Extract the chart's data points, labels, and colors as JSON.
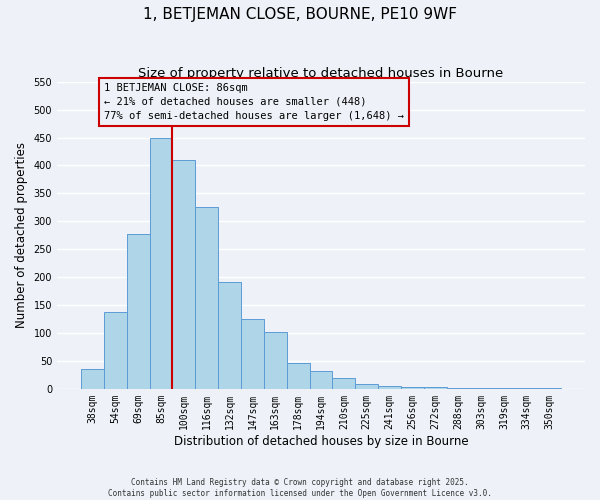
{
  "title": "1, BETJEMAN CLOSE, BOURNE, PE10 9WF",
  "subtitle": "Size of property relative to detached houses in Bourne",
  "xlabel": "Distribution of detached houses by size in Bourne",
  "ylabel": "Number of detached properties",
  "bar_labels": [
    "38sqm",
    "54sqm",
    "69sqm",
    "85sqm",
    "100sqm",
    "116sqm",
    "132sqm",
    "147sqm",
    "163sqm",
    "178sqm",
    "194sqm",
    "210sqm",
    "225sqm",
    "241sqm",
    "256sqm",
    "272sqm",
    "288sqm",
    "303sqm",
    "319sqm",
    "334sqm",
    "350sqm"
  ],
  "bar_values": [
    35,
    137,
    278,
    450,
    410,
    325,
    192,
    125,
    101,
    46,
    32,
    20,
    8,
    5,
    4,
    3,
    2,
    2,
    1,
    1,
    2
  ],
  "bar_color": "#aed6e8",
  "bar_edge_color": "#5b9bd5",
  "annotation_text_line1": "1 BETJEMAN CLOSE: 86sqm",
  "annotation_text_line2": "← 21% of detached houses are smaller (448)",
  "annotation_text_line3": "77% of semi-detached houses are larger (1,648) →",
  "vline_color": "#cc0000",
  "annotation_box_edge": "#cc0000",
  "ylim": [
    0,
    550
  ],
  "yticks": [
    0,
    50,
    100,
    150,
    200,
    250,
    300,
    350,
    400,
    450,
    500,
    550
  ],
  "footnote_line1": "Contains HM Land Registry data © Crown copyright and database right 2025.",
  "footnote_line2": "Contains public sector information licensed under the Open Government Licence v3.0.",
  "bg_color": "#eef2f8",
  "grid_color": "#ffffff",
  "title_fontsize": 11,
  "subtitle_fontsize": 9.5,
  "tick_fontsize": 7,
  "label_fontsize": 8.5,
  "annotation_fontsize": 7.5,
  "footnote_fontsize": 5.5
}
